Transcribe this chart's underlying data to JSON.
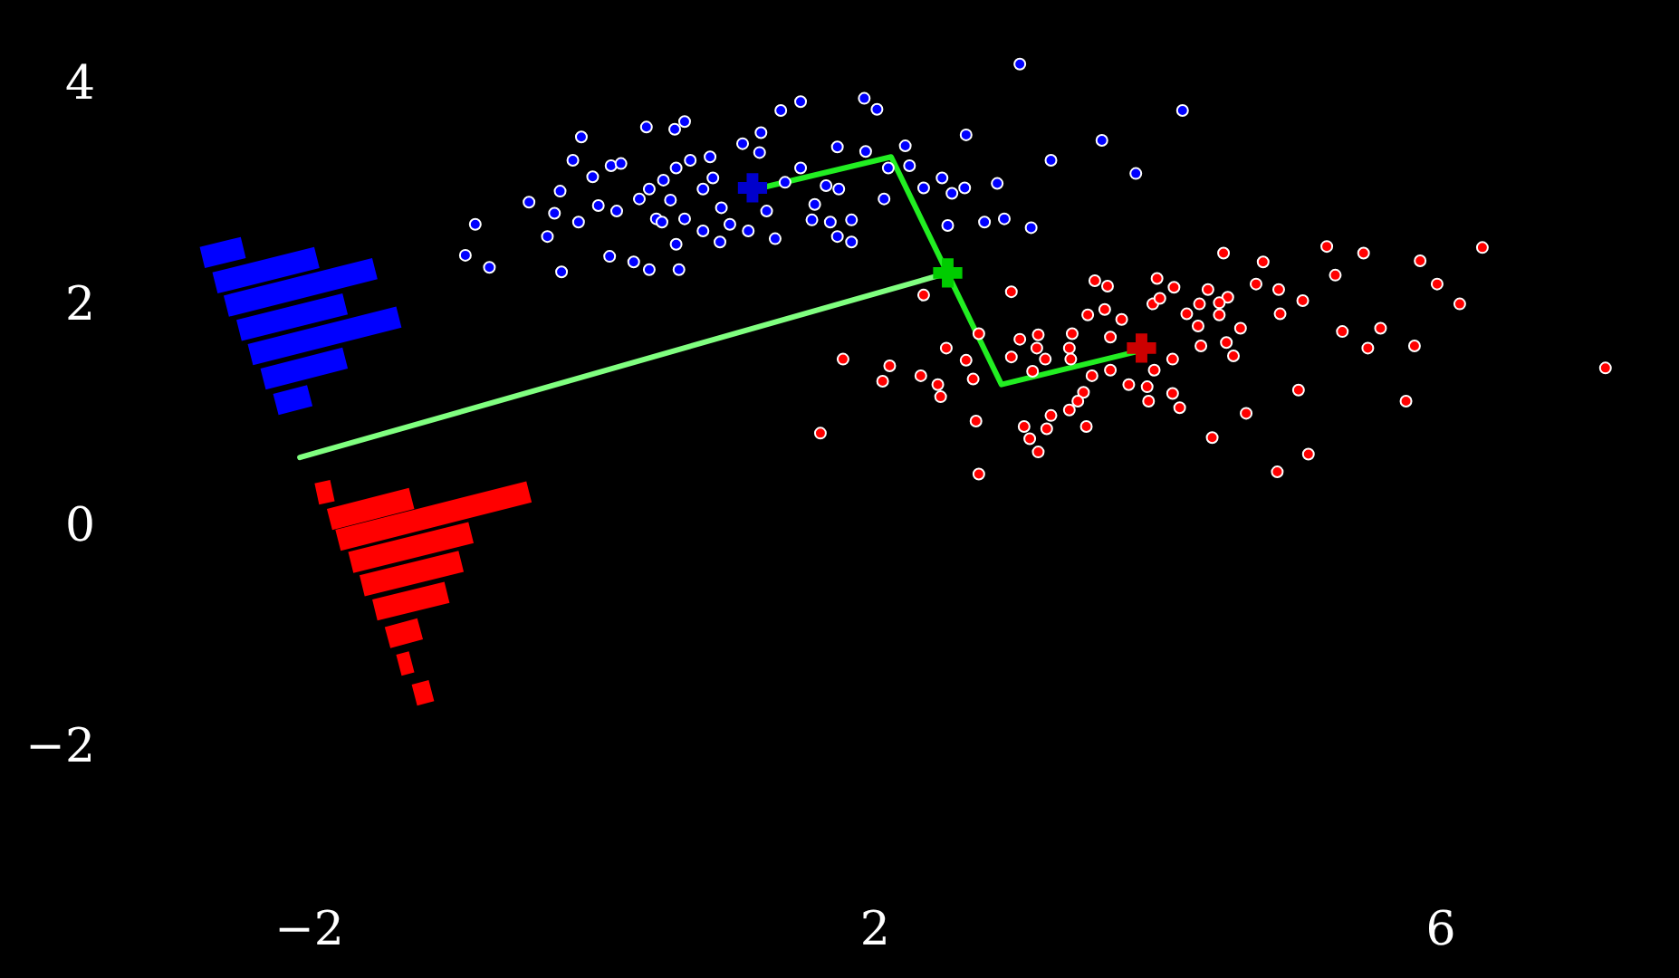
{
  "chart_data": {
    "type": "scatter",
    "xlim": [
      -4.18,
      7.69
    ],
    "ylim": [
      -4.1,
      4.75
    ],
    "xticks": [
      -2,
      2,
      6
    ],
    "yticks": [
      -2,
      0,
      2,
      4
    ],
    "grid": false,
    "marker": "circle",
    "series": [
      {
        "type": "line",
        "marker": "none",
        "color": "#0000ff",
        "x": [
          -2.75,
          -2.46,
          null,
          -2.66,
          -1.94,
          null,
          -2.58,
          -1.53,
          null,
          -2.49,
          -1.74,
          null,
          -2.41,
          -1.36,
          null,
          -2.32,
          -1.74,
          null,
          -2.23,
          -1.99
        ],
        "values": [
          2.42,
          2.51,
          null,
          2.19,
          2.42,
          null,
          1.98,
          2.32,
          null,
          1.76,
          2.0,
          null,
          1.54,
          1.88,
          null,
          1.32,
          1.51,
          null,
          1.09,
          1.17
        ]
      },
      {
        "type": "line",
        "marker": "none",
        "color": "#ff0000",
        "x": [
          -1.94,
          -1.83,
          null,
          -1.85,
          -1.27,
          null,
          -1.79,
          -0.44,
          null,
          -1.7,
          -0.85,
          null,
          -1.62,
          -0.92,
          null,
          -1.53,
          -1.02,
          null,
          -1.44,
          -1.21,
          null,
          -1.36,
          -1.27,
          null,
          -1.25,
          -1.13
        ],
        "values": [
          0.28,
          0.31,
          null,
          0.05,
          0.24,
          null,
          -0.14,
          0.3,
          null,
          -0.34,
          -0.07,
          null,
          -0.55,
          -0.33,
          null,
          -0.77,
          -0.61,
          null,
          -1.02,
          -0.94,
          null,
          -1.27,
          -1.24,
          null,
          -1.54,
          -1.5
        ]
      },
      {
        "type": "line",
        "marker": "none",
        "color": "#80ff80",
        "x": [
          2.52,
          -2.06
        ],
        "values": [
          2.28,
          0.61
        ]
      },
      {
        "type": "line",
        "marker": "none",
        "color": "#22ee22",
        "x": [
          1.2,
          2.12,
          2.9,
          3.86
        ],
        "values": [
          3.05,
          3.33,
          1.27,
          1.57
        ]
      },
      {
        "color": "#0000ff",
        "x": [
          3.03,
          1.48,
          1.34,
          1.93,
          2.02,
          4.18,
          0.39,
          0.66,
          0.59,
          -0.07,
          1.2,
          2.65,
          3.61,
          1.07,
          1.19,
          1.74,
          1.94,
          2.22,
          -0.13,
          0.14,
          0.21,
          0.6,
          0.7,
          0.84,
          3.25,
          1.48,
          2.1,
          2.25,
          3.85,
          0.01,
          -0.22,
          0.41,
          0.51,
          0.79,
          0.86,
          1.37,
          1.66,
          1.75,
          2.35,
          2.48,
          2.55,
          2.64,
          2.87,
          -0.44,
          0.05,
          0.18,
          0.34,
          0.56,
          0.92,
          1.24,
          1.58,
          2.07,
          -0.26,
          -0.09,
          0.46,
          0.5,
          0.66,
          0.98,
          1.56,
          1.69,
          1.84,
          2.52,
          2.78,
          2.92,
          3.11,
          -0.82,
          -0.31,
          0.79,
          0.91,
          1.11,
          1.3,
          1.74,
          1.84,
          0.6,
          -0.89,
          -0.72,
          -0.21,
          0.13,
          0.3,
          0.41,
          0.62
        ],
        "values": [
          4.17,
          3.83,
          3.75,
          3.86,
          3.76,
          3.75,
          3.6,
          3.65,
          3.58,
          3.51,
          3.55,
          3.53,
          3.48,
          3.45,
          3.37,
          3.42,
          3.38,
          3.43,
          3.3,
          3.25,
          3.27,
          3.23,
          3.3,
          3.33,
          3.3,
          3.23,
          3.23,
          3.25,
          3.18,
          3.15,
          3.02,
          3.04,
          3.12,
          3.04,
          3.14,
          3.1,
          3.07,
          3.04,
          3.05,
          3.14,
          3.0,
          3.05,
          3.09,
          2.92,
          2.89,
          2.84,
          2.95,
          2.94,
          2.87,
          2.84,
          2.9,
          2.95,
          2.82,
          2.74,
          2.77,
          2.74,
          2.77,
          2.72,
          2.76,
          2.74,
          2.76,
          2.71,
          2.74,
          2.77,
          2.69,
          2.72,
          2.61,
          2.66,
          2.56,
          2.66,
          2.59,
          2.61,
          2.56,
          2.54,
          2.44,
          2.33,
          2.29,
          2.43,
          2.38,
          2.31,
          2.31
        ]
      },
      {
        "color": "#ff0000",
        "x": [
          4.47,
          4.75,
          5.2,
          5.46,
          5.86,
          6.3,
          5.26,
          5.98,
          6.14,
          2.35,
          2.97,
          3.56,
          3.65,
          4.0,
          4.12,
          4.36,
          4.5,
          4.7,
          4.86,
          5.03,
          3.97,
          4.02,
          4.21,
          4.3,
          4.44,
          4.29,
          4.44,
          4.87,
          3.51,
          3.63,
          3.75,
          4.59,
          5.31,
          5.58,
          5.49,
          5.82,
          4.31,
          4.49,
          4.54,
          3.4,
          3.67,
          3.03,
          3.16,
          3.15,
          3.38,
          2.51,
          2.74,
          2.97,
          3.21,
          3.39,
          2.65,
          1.78,
          2.11,
          2.06,
          2.33,
          2.45,
          2.47,
          2.7,
          3.12,
          3.54,
          3.67,
          3.8,
          3.93,
          3.94,
          3.98,
          4.11,
          4.11,
          4.16,
          3.48,
          3.44,
          3.38,
          3.25,
          2.72,
          3.06,
          3.22,
          3.5,
          3.1,
          3.16,
          1.62,
          2.74,
          4.39,
          4.63,
          5.0,
          5.07,
          4.85,
          5.76,
          7.17
        ],
        "values": [
          2.46,
          2.38,
          2.52,
          2.46,
          2.39,
          2.51,
          2.26,
          2.18,
          2.0,
          2.08,
          2.11,
          2.21,
          2.16,
          2.23,
          2.15,
          2.13,
          2.06,
          2.18,
          2.13,
          2.03,
          2.0,
          2.05,
          1.91,
          2.0,
          2.01,
          1.8,
          1.9,
          1.91,
          1.9,
          1.95,
          1.86,
          1.78,
          1.75,
          1.78,
          1.6,
          1.62,
          1.62,
          1.65,
          1.53,
          1.73,
          1.7,
          1.68,
          1.72,
          1.6,
          1.6,
          1.6,
          1.73,
          1.52,
          1.5,
          1.5,
          1.49,
          1.5,
          1.44,
          1.3,
          1.35,
          1.27,
          1.16,
          1.32,
          1.39,
          1.35,
          1.4,
          1.27,
          1.25,
          1.12,
          1.4,
          1.5,
          1.19,
          1.06,
          1.2,
          1.12,
          1.04,
          0.99,
          0.94,
          0.89,
          0.87,
          0.89,
          0.78,
          0.66,
          0.83,
          0.46,
          0.79,
          1.01,
          1.22,
          0.64,
          0.48,
          1.12,
          1.42
        ]
      },
      {
        "marker": "cross",
        "color": "#0000cc",
        "x": [
          1.14
        ],
        "values": [
          3.05
        ]
      },
      {
        "marker": "cross",
        "color": "#cc0000",
        "x": [
          3.89
        ],
        "values": [
          1.6
        ]
      },
      {
        "marker": "cross",
        "color": "#00cc00",
        "x": [
          2.52
        ],
        "values": [
          2.28
        ]
      }
    ]
  }
}
